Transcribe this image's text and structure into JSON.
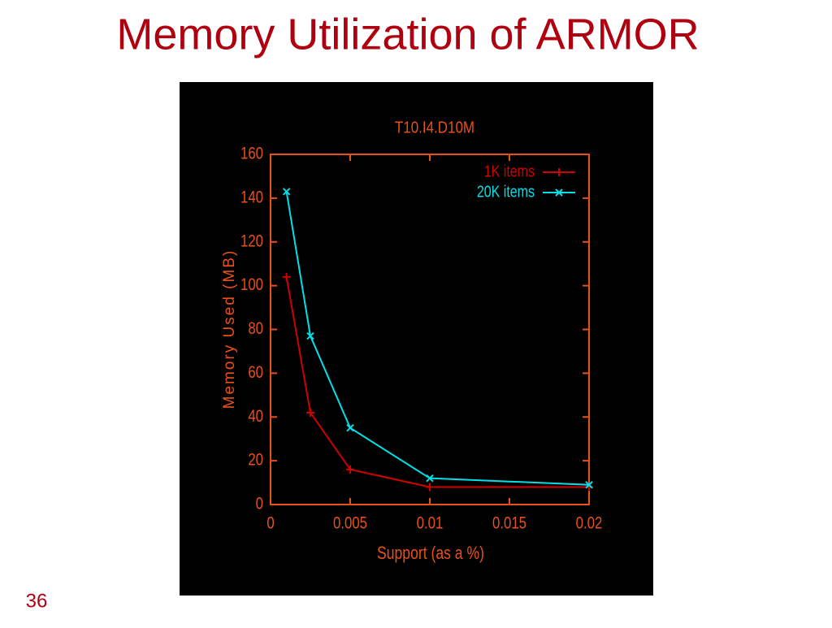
{
  "slide": {
    "title": "Memory Utilization of ARMOR",
    "page_number": "36"
  },
  "chart_data": {
    "type": "line",
    "title": "T10.I4.D10M",
    "x_label": "Support (as a %)",
    "y_label": "Memory Used (MB)",
    "x": [
      0.001,
      0.0025,
      0.005,
      0.01,
      0.02
    ],
    "series": [
      {
        "name": "1K items",
        "color": "#d00000",
        "marker": "+",
        "values": [
          104,
          42,
          16,
          8,
          8
        ]
      },
      {
        "name": "20K items",
        "color": "#00e0e8",
        "marker": "x",
        "values": [
          143,
          77,
          35,
          12,
          9
        ]
      }
    ],
    "xlim": [
      0,
      0.02
    ],
    "xticks": [
      0,
      0.005,
      0.01,
      0.015,
      0.02
    ],
    "ylim": [
      0,
      160
    ],
    "yticks": [
      0,
      20,
      40,
      60,
      80,
      100,
      120,
      140,
      160
    ],
    "axis_color": "#e8501a",
    "background": "#000000",
    "legend": "upper right"
  }
}
